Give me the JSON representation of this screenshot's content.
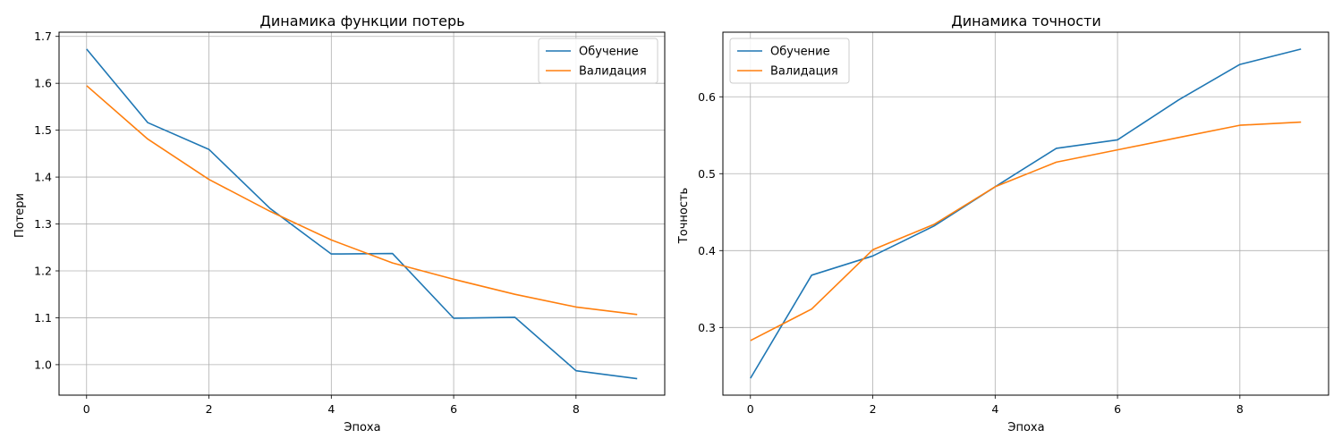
{
  "chart_data": [
    {
      "type": "line",
      "title": "Динамика функции потерь",
      "xlabel": "Эпоха",
      "ylabel": "Потери",
      "x": [
        0,
        1,
        2,
        3,
        4,
        5,
        6,
        7,
        8,
        9
      ],
      "xlim": [
        -0.45,
        9.45
      ],
      "ylim": [
        0.935,
        1.709
      ],
      "xticks": [
        0,
        2,
        4,
        6,
        8
      ],
      "yticks": [
        1.0,
        1.1,
        1.2,
        1.3,
        1.4,
        1.5,
        1.6,
        1.7
      ],
      "ytick_labels": [
        "1.0",
        "1.1",
        "1.2",
        "1.3",
        "1.4",
        "1.5",
        "1.6",
        "1.7"
      ],
      "grid": true,
      "legend": "top-right",
      "series": [
        {
          "name": "Обучение",
          "color": "#1f77b4",
          "values": [
            1.673,
            1.516,
            1.459,
            1.333,
            1.236,
            1.237,
            1.099,
            1.101,
            0.987,
            0.97
          ]
        },
        {
          "name": "Валидация",
          "color": "#ff7f0e",
          "values": [
            1.595,
            1.481,
            1.395,
            1.327,
            1.266,
            1.217,
            1.182,
            1.15,
            1.123,
            1.107
          ]
        }
      ]
    },
    {
      "type": "line",
      "title": "Динамика точности",
      "xlabel": "Эпоха",
      "ylabel": "Точность",
      "x": [
        0,
        1,
        2,
        3,
        4,
        5,
        6,
        7,
        8,
        9
      ],
      "xlim": [
        -0.45,
        9.45
      ],
      "ylim": [
        0.212,
        0.684
      ],
      "xticks": [
        0,
        2,
        4,
        6,
        8
      ],
      "yticks": [
        0.3,
        0.4,
        0.5,
        0.6
      ],
      "ytick_labels": [
        "0.3",
        "0.4",
        "0.5",
        "0.6"
      ],
      "grid": true,
      "legend": "top-left",
      "series": [
        {
          "name": "Обучение",
          "color": "#1f77b4",
          "values": [
            0.234,
            0.368,
            0.393,
            0.432,
            0.483,
            0.533,
            0.544,
            0.596,
            0.642,
            0.662
          ]
        },
        {
          "name": "Валидация",
          "color": "#ff7f0e",
          "values": [
            0.283,
            0.324,
            0.401,
            0.434,
            0.483,
            0.515,
            0.531,
            0.547,
            0.563,
            0.567
          ]
        }
      ]
    }
  ]
}
